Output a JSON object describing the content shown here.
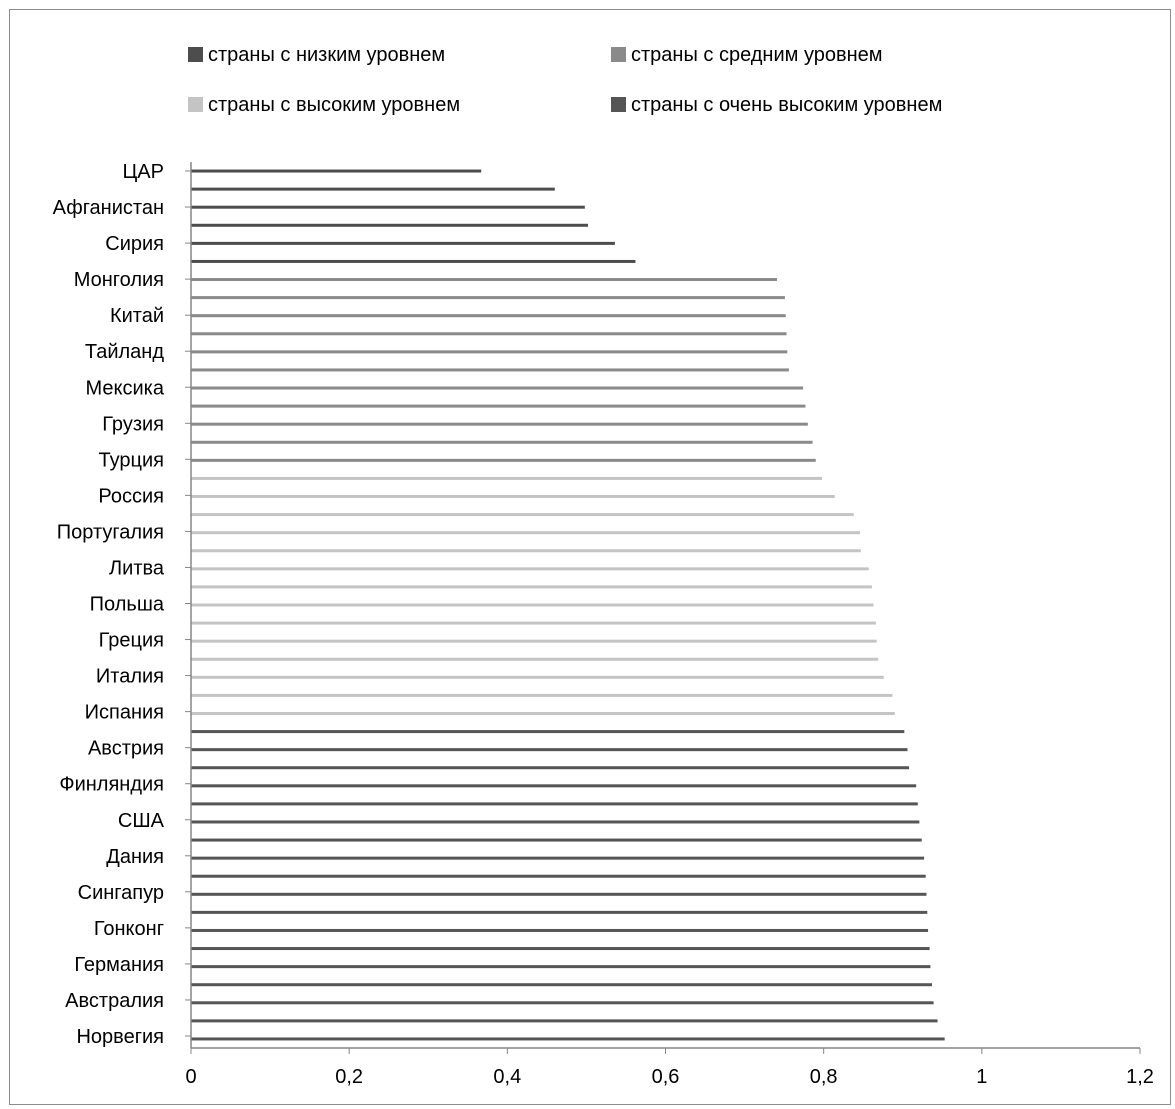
{
  "chart_data": {
    "type": "bar",
    "orientation": "horizontal",
    "title": "",
    "xlabel": "",
    "ylabel": "",
    "xlim": [
      0,
      1.2
    ],
    "x_ticks": [
      0,
      0.2,
      0.4,
      0.6,
      0.8,
      1,
      1.2
    ],
    "x_tick_labels": [
      "0",
      "0,2",
      "0,4",
      "0,6",
      "0,8",
      "1",
      "1,2"
    ],
    "grid": false,
    "legend_position": "top",
    "legend": [
      {
        "label": "страны с низким уровнем",
        "color": "#4d4d4d"
      },
      {
        "label": "страны с средним уровнем",
        "color": "#8a8a8a"
      },
      {
        "label": "страны с высоким уровнем",
        "color": "#c4c4c4"
      },
      {
        "label": "страны с очень высоким уровнем",
        "color": "#555555"
      }
    ],
    "category_labels": [
      "ЦАР",
      "Афганистан",
      "Сирия",
      "Монголия",
      "Китай",
      "Тайланд",
      "Мексика",
      "Грузия",
      "Турция",
      "Россия",
      "Португалия",
      "Литва",
      "Польша",
      "Греция",
      "Италия",
      "Испания",
      "Австрия",
      "Финляндия",
      "США",
      "Дания",
      "Сингапур",
      "Гонконг",
      "Германия",
      "Австралия",
      "Норвегия"
    ],
    "bars": [
      {
        "value": 0.367,
        "group": 0
      },
      {
        "value": 0.46,
        "group": 0
      },
      {
        "value": 0.498,
        "group": 0
      },
      {
        "value": 0.502,
        "group": 0
      },
      {
        "value": 0.536,
        "group": 0
      },
      {
        "value": 0.562,
        "group": 0
      },
      {
        "value": 0.741,
        "group": 1
      },
      {
        "value": 0.751,
        "group": 1
      },
      {
        "value": 0.752,
        "group": 1
      },
      {
        "value": 0.753,
        "group": 1
      },
      {
        "value": 0.754,
        "group": 1
      },
      {
        "value": 0.756,
        "group": 1
      },
      {
        "value": 0.774,
        "group": 1
      },
      {
        "value": 0.777,
        "group": 1
      },
      {
        "value": 0.78,
        "group": 1
      },
      {
        "value": 0.786,
        "group": 1
      },
      {
        "value": 0.79,
        "group": 1
      },
      {
        "value": 0.798,
        "group": 2
      },
      {
        "value": 0.814,
        "group": 2
      },
      {
        "value": 0.838,
        "group": 2
      },
      {
        "value": 0.846,
        "group": 2
      },
      {
        "value": 0.847,
        "group": 2
      },
      {
        "value": 0.857,
        "group": 2
      },
      {
        "value": 0.861,
        "group": 2
      },
      {
        "value": 0.863,
        "group": 2
      },
      {
        "value": 0.866,
        "group": 2
      },
      {
        "value": 0.867,
        "group": 2
      },
      {
        "value": 0.869,
        "group": 2
      },
      {
        "value": 0.876,
        "group": 2
      },
      {
        "value": 0.887,
        "group": 2
      },
      {
        "value": 0.89,
        "group": 2
      },
      {
        "value": 0.902,
        "group": 3
      },
      {
        "value": 0.906,
        "group": 3
      },
      {
        "value": 0.908,
        "group": 3
      },
      {
        "value": 0.917,
        "group": 3
      },
      {
        "value": 0.919,
        "group": 3
      },
      {
        "value": 0.921,
        "group": 3
      },
      {
        "value": 0.924,
        "group": 3
      },
      {
        "value": 0.927,
        "group": 3
      },
      {
        "value": 0.929,
        "group": 3
      },
      {
        "value": 0.93,
        "group": 3
      },
      {
        "value": 0.931,
        "group": 3
      },
      {
        "value": 0.932,
        "group": 3
      },
      {
        "value": 0.934,
        "group": 3
      },
      {
        "value": 0.935,
        "group": 3
      },
      {
        "value": 0.937,
        "group": 3
      },
      {
        "value": 0.939,
        "group": 3
      },
      {
        "value": 0.944,
        "group": 3
      },
      {
        "value": 0.953,
        "group": 3
      }
    ]
  }
}
